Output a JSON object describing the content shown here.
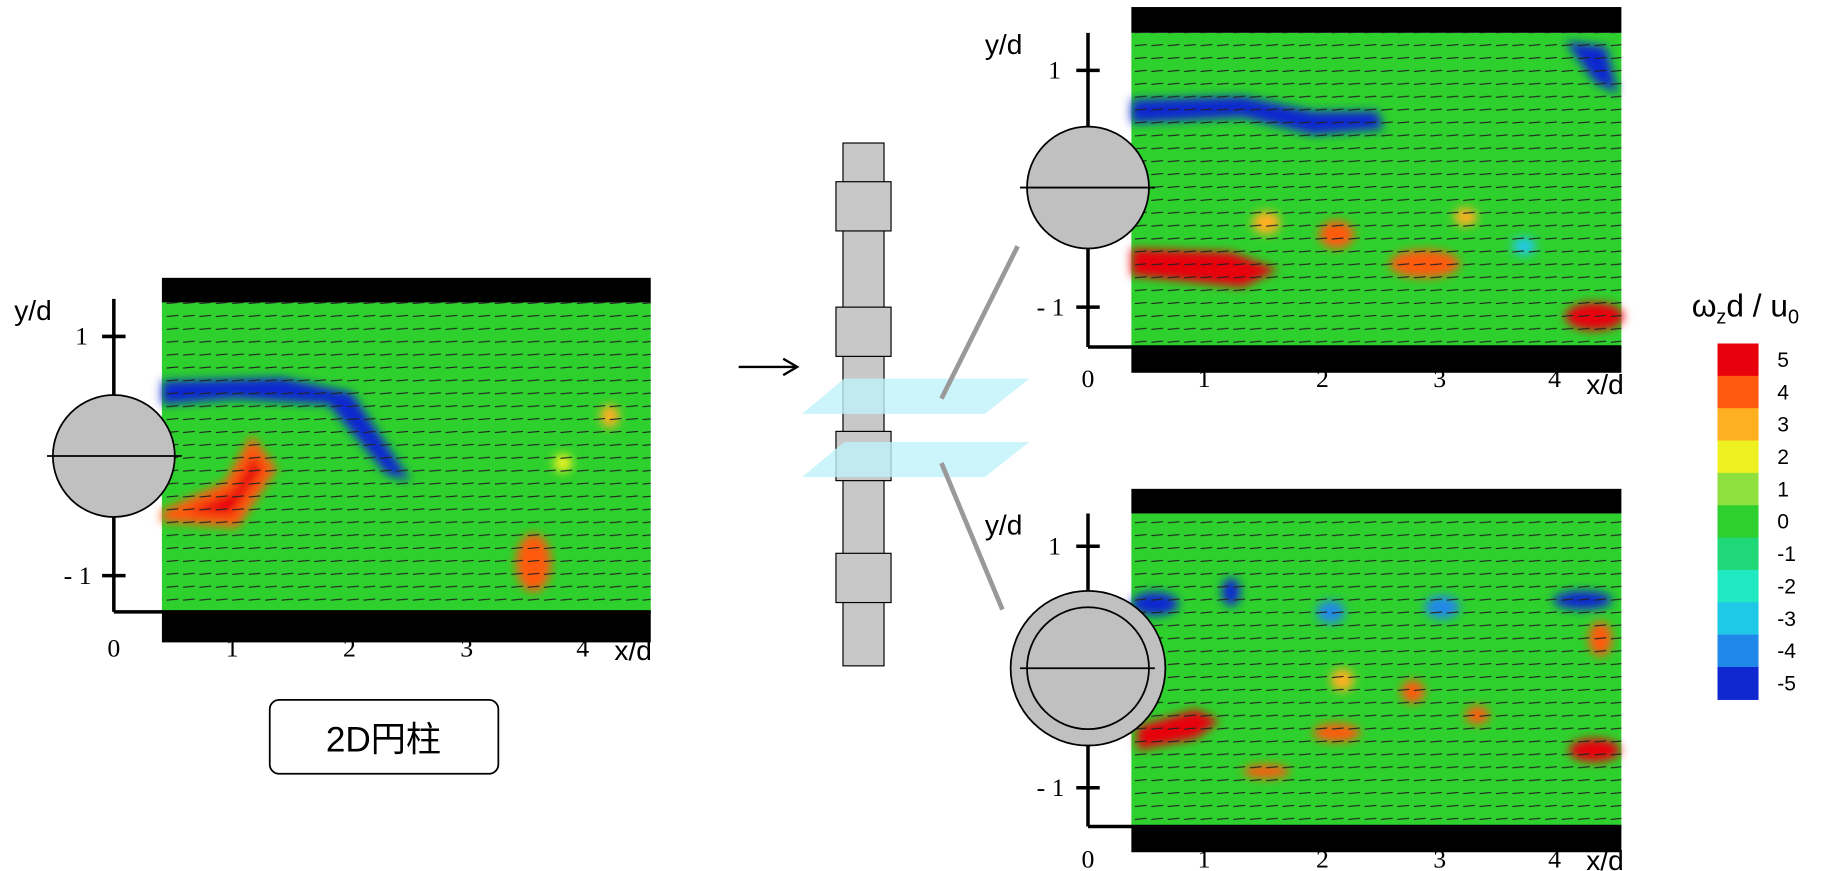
{
  "panels": [
    {
      "y_axis_label": "y/d",
      "x_axis_label": "x/d",
      "y_ticks": [
        "1",
        "- 1"
      ],
      "x_ticks": [
        "0",
        "1",
        "2",
        "3",
        "4"
      ],
      "caption": "2D円柱"
    },
    {
      "y_axis_label": "y/d",
      "x_axis_label": "x/d",
      "y_ticks": [
        "1",
        "- 1"
      ],
      "x_ticks": [
        "0",
        "1",
        "2",
        "3",
        "4"
      ]
    },
    {
      "y_axis_label": "y/d",
      "x_axis_label": "x/d",
      "y_ticks": [
        "1",
        "- 1"
      ],
      "x_ticks": [
        "0",
        "1",
        "2",
        "3",
        "4"
      ]
    }
  ],
  "colorbar": {
    "title": [
      "ω",
      "z",
      "d / u",
      "0"
    ],
    "levels": [
      {
        "label": "5",
        "color": "#e8000c"
      },
      {
        "label": "4",
        "color": "#ff5a10"
      },
      {
        "label": "3",
        "color": "#ffb020"
      },
      {
        "label": "2",
        "color": "#eef020"
      },
      {
        "label": "1",
        "color": "#90e040"
      },
      {
        "label": "0",
        "color": "#2ed02e"
      },
      {
        "label": "-1",
        "color": "#20d878"
      },
      {
        "label": "-2",
        "color": "#20e8c0"
      },
      {
        "label": "-3",
        "color": "#20c8e8"
      },
      {
        "label": "-4",
        "color": "#2088e8"
      },
      {
        "label": "-5",
        "color": "#1028d0"
      }
    ]
  }
}
